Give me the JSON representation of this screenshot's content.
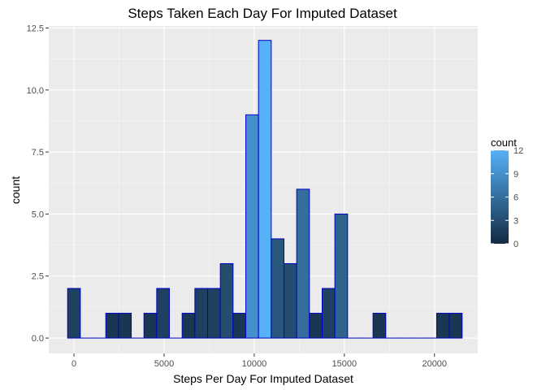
{
  "chart_data": {
    "type": "bar",
    "title": "Steps Taken Each Day For Imputed Dataset",
    "xlabel": "Steps Per Day For Imputed Dataset",
    "ylabel": "count",
    "xlim": [
      -1400,
      22400
    ],
    "ylim": [
      -0.62,
      12.58
    ],
    "xticks": [
      0,
      5000,
      10000,
      15000,
      20000
    ],
    "xtick_labels": [
      "0",
      "5000",
      "10000",
      "15000",
      "20000"
    ],
    "yticks": [
      0,
      2.5,
      5,
      7.5,
      10,
      12.5
    ],
    "ytick_labels": [
      "0.0",
      "2.5",
      "5.0",
      "7.5",
      "10.0",
      "12.5"
    ],
    "bin_width": 706,
    "bins_start": -353,
    "counts": [
      2,
      0,
      0,
      1,
      1,
      0,
      1,
      2,
      0,
      1,
      2,
      2,
      3,
      1,
      9,
      12,
      4,
      3,
      6,
      1,
      2,
      5,
      0,
      0,
      1,
      0,
      0,
      0,
      0,
      1,
      1
    ],
    "grid": true,
    "background": "#ebebeb",
    "bar_outline_color": "#0000cd",
    "fill_low_color": "#132b43",
    "fill_high_color": "#56b1f7",
    "legend": {
      "title": "count",
      "ticks": [
        0,
        3,
        6,
        9,
        12
      ],
      "tick_labels": [
        "0",
        "3",
        "6",
        "9",
        "12"
      ],
      "placement": "right"
    }
  }
}
